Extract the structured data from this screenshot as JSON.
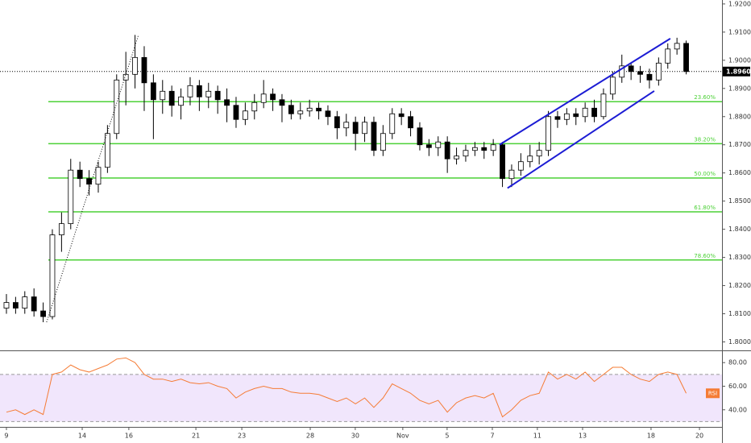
{
  "chart_data": [
    {
      "type": "candlestick",
      "xlim": [
        -0.28,
        31.16
      ],
      "ylim": [
        1.797,
        1.9214
      ],
      "yticks": [
        {
          "value": 1.92,
          "label": "1.92000"
        },
        {
          "value": 1.91,
          "label": "1.91000"
        },
        {
          "value": 1.9,
          "label": "1.90000"
        },
        {
          "value": 1.89,
          "label": "1.89000"
        },
        {
          "value": 1.88,
          "label": "1.88000"
        },
        {
          "value": 1.87,
          "label": "1.87000"
        },
        {
          "value": 1.86,
          "label": "1.86000"
        },
        {
          "value": 1.85,
          "label": "1.85000"
        },
        {
          "value": 1.84,
          "label": "1.84000"
        },
        {
          "value": 1.83,
          "label": "1.83000"
        },
        {
          "value": 1.82,
          "label": "1.82000"
        },
        {
          "value": 1.81,
          "label": "1.81000"
        },
        {
          "value": 1.8,
          "label": "1.80000"
        }
      ],
      "up_color": "#ffffff",
      "down_color": "#000000",
      "x": [
        0,
        0.4,
        0.8,
        1.2,
        1.6,
        2,
        2.4,
        2.8,
        3.2,
        3.6,
        4,
        4.4,
        4.8,
        5.2,
        5.6,
        6,
        6.4,
        6.8,
        7.2,
        7.6,
        8,
        8.4,
        8.8,
        9.2,
        9.6,
        10,
        10.4,
        10.8,
        11.2,
        11.6,
        12,
        12.4,
        12.8,
        13.2,
        13.6,
        14,
        14.4,
        14.8,
        15.2,
        15.6,
        16,
        16.4,
        16.8,
        17.2,
        17.6,
        18,
        18.4,
        18.8,
        19.2,
        19.6,
        20,
        20.4,
        20.8,
        21.2,
        21.6,
        22,
        22.4,
        22.8,
        23.2,
        23.6,
        24,
        24.4,
        24.8,
        25.2,
        25.6,
        26,
        26.4,
        26.8,
        27.2,
        27.6,
        28,
        28.4,
        28.8,
        29.2,
        29.6
      ],
      "open": [
        1.812,
        1.814,
        1.812,
        1.816,
        1.811,
        1.809,
        1.838,
        1.842,
        1.861,
        1.858,
        1.856,
        1.862,
        1.874,
        1.893,
        1.895,
        1.901,
        1.892,
        1.886,
        1.889,
        1.884,
        1.887,
        1.891,
        1.887,
        1.889,
        1.886,
        1.884,
        1.879,
        1.882,
        1.885,
        1.888,
        1.886,
        1.884,
        1.881,
        1.882,
        1.883,
        1.882,
        1.88,
        1.876,
        1.878,
        1.874,
        1.878,
        1.868,
        1.874,
        1.881,
        1.88,
        1.876,
        1.87,
        1.869,
        1.871,
        1.865,
        1.866,
        1.868,
        1.869,
        1.868,
        1.87,
        1.858,
        1.861,
        1.864,
        1.866,
        1.868,
        1.88,
        1.879,
        1.881,
        1.88,
        1.883,
        1.88,
        1.888,
        1.894,
        1.898,
        1.896,
        1.895,
        1.893,
        1.899,
        1.904,
        1.906
      ],
      "high": [
        1.817,
        1.816,
        1.818,
        1.819,
        1.814,
        1.84,
        1.846,
        1.865,
        1.864,
        1.861,
        1.864,
        1.877,
        1.895,
        1.903,
        1.909,
        1.905,
        1.895,
        1.893,
        1.891,
        1.89,
        1.894,
        1.893,
        1.892,
        1.891,
        1.89,
        1.887,
        1.885,
        1.888,
        1.893,
        1.89,
        1.888,
        1.886,
        1.885,
        1.886,
        1.885,
        1.884,
        1.882,
        1.881,
        1.88,
        1.88,
        1.88,
        1.877,
        1.883,
        1.883,
        1.882,
        1.878,
        1.872,
        1.873,
        1.873,
        1.869,
        1.87,
        1.871,
        1.871,
        1.872,
        1.871,
        1.863,
        1.867,
        1.87,
        1.871,
        1.882,
        1.882,
        1.883,
        1.883,
        1.885,
        1.886,
        1.89,
        1.896,
        1.902,
        1.899,
        1.898,
        1.897,
        1.901,
        1.906,
        1.908,
        1.907
      ],
      "low": [
        1.81,
        1.81,
        1.81,
        1.809,
        1.807,
        1.808,
        1.832,
        1.84,
        1.855,
        1.852,
        1.853,
        1.86,
        1.872,
        1.884,
        1.89,
        1.882,
        1.872,
        1.881,
        1.88,
        1.879,
        1.884,
        1.882,
        1.883,
        1.881,
        1.878,
        1.876,
        1.877,
        1.879,
        1.883,
        1.882,
        1.878,
        1.879,
        1.879,
        1.88,
        1.879,
        1.877,
        1.872,
        1.873,
        1.868,
        1.871,
        1.866,
        1.866,
        1.872,
        1.877,
        1.873,
        1.868,
        1.866,
        1.866,
        1.86,
        1.863,
        1.864,
        1.866,
        1.865,
        1.866,
        1.855,
        1.855,
        1.859,
        1.862,
        1.863,
        1.866,
        1.876,
        1.877,
        1.877,
        1.878,
        1.878,
        1.879,
        1.886,
        1.892,
        1.893,
        1.892,
        1.89,
        1.891,
        1.897,
        1.902,
        1.895
      ],
      "close": [
        1.814,
        1.812,
        1.816,
        1.811,
        1.809,
        1.838,
        1.842,
        1.861,
        1.858,
        1.856,
        1.862,
        1.874,
        1.893,
        1.895,
        1.901,
        1.892,
        1.886,
        1.889,
        1.884,
        1.887,
        1.891,
        1.887,
        1.889,
        1.886,
        1.884,
        1.879,
        1.882,
        1.885,
        1.888,
        1.886,
        1.884,
        1.881,
        1.882,
        1.883,
        1.882,
        1.88,
        1.876,
        1.878,
        1.874,
        1.878,
        1.868,
        1.874,
        1.881,
        1.88,
        1.876,
        1.87,
        1.869,
        1.871,
        1.865,
        1.866,
        1.868,
        1.869,
        1.868,
        1.87,
        1.858,
        1.861,
        1.864,
        1.866,
        1.868,
        1.88,
        1.879,
        1.881,
        1.88,
        1.883,
        1.88,
        1.888,
        1.894,
        1.898,
        1.896,
        1.895,
        1.893,
        1.899,
        1.904,
        1.906,
        1.896
      ],
      "fib_color": "#4cd137",
      "fib_levels": [
        {
          "label": "23.60%",
          "price": 1.8853
        },
        {
          "label": "38.20%",
          "price": 1.8704
        },
        {
          "label": "50.00%",
          "price": 1.8582
        },
        {
          "label": "61.80%",
          "price": 1.8462
        },
        {
          "label": "78.60%",
          "price": 1.8291
        }
      ],
      "trendlines": [
        {
          "x": [
            21.47,
            28.91
          ],
          "y": [
            1.87,
            1.9077
          ],
          "color": "#1c1cd4",
          "style": "solid"
        },
        {
          "x": [
            21.82,
            28.21
          ],
          "y": [
            1.8546,
            1.8891
          ],
          "color": "#1c1cd4",
          "style": "solid"
        },
        {
          "x": [
            1.75,
            5.75
          ],
          "y": [
            1.807,
            1.909
          ],
          "color": "#000000",
          "style": "dotted"
        }
      ],
      "last_price": 1.89601
    },
    {
      "type": "line",
      "xlim": [
        -0.28,
        31.16
      ],
      "ylim": [
        25.5,
        89.7
      ],
      "yticks": [
        {
          "value": 80,
          "label": "80.00"
        },
        {
          "value": 60,
          "label": "60.00"
        },
        {
          "value": 40,
          "label": "40.00"
        }
      ],
      "band": [
        30,
        70
      ],
      "band_color": "#f1e6fc",
      "xticks": [
        {
          "value": 0,
          "label": "9"
        },
        {
          "value": 3.3,
          "label": "14"
        },
        {
          "value": 5.33,
          "label": "16"
        },
        {
          "value": 8.25,
          "label": "21"
        },
        {
          "value": 10.25,
          "label": "23"
        },
        {
          "value": 13.23,
          "label": "28"
        },
        {
          "value": 15.19,
          "label": "30"
        },
        {
          "value": 17.26,
          "label": "Nov"
        },
        {
          "value": 19.19,
          "label": "5"
        },
        {
          "value": 21.16,
          "label": "7"
        },
        {
          "value": 23.12,
          "label": "11"
        },
        {
          "value": 25.09,
          "label": "13"
        },
        {
          "value": 28.07,
          "label": "18"
        },
        {
          "value": 30.18,
          "label": "20"
        }
      ],
      "x": [
        0,
        0.4,
        0.8,
        1.2,
        1.6,
        2,
        2.4,
        2.8,
        3.2,
        3.6,
        4,
        4.4,
        4.8,
        5.2,
        5.6,
        6,
        6.4,
        6.8,
        7.2,
        7.6,
        8,
        8.4,
        8.8,
        9.2,
        9.6,
        10,
        10.4,
        10.8,
        11.2,
        11.6,
        12,
        12.4,
        12.8,
        13.2,
        13.6,
        14,
        14.4,
        14.8,
        15.2,
        15.6,
        16,
        16.4,
        16.8,
        17.2,
        17.6,
        18,
        18.4,
        18.8,
        19.2,
        19.6,
        20,
        20.4,
        20.8,
        21.2,
        21.6,
        22,
        22.4,
        22.8,
        23.2,
        23.6,
        24,
        24.4,
        24.8,
        25.2,
        25.6,
        26,
        26.4,
        26.8,
        27.2,
        27.6,
        28,
        28.4,
        28.8,
        29.2,
        29.6
      ],
      "series": [
        {
          "name": "RSI",
          "color": "#f57c36",
          "values": [
            38,
            40,
            36,
            40,
            36,
            70,
            72,
            78,
            74,
            72,
            75,
            78,
            83,
            84,
            80,
            70,
            66,
            66,
            64,
            66,
            63,
            62,
            63,
            60,
            58,
            50,
            55,
            58,
            60,
            58,
            58,
            55,
            54,
            54,
            53,
            50,
            47,
            50,
            45,
            50,
            42,
            50,
            62,
            58,
            54,
            48,
            45,
            48,
            38,
            46,
            50,
            52,
            50,
            54,
            34,
            40,
            48,
            52,
            54,
            72,
            66,
            70,
            66,
            72,
            64,
            70,
            76,
            76,
            70,
            66,
            64,
            70,
            72,
            70,
            54
          ]
        }
      ]
    }
  ]
}
